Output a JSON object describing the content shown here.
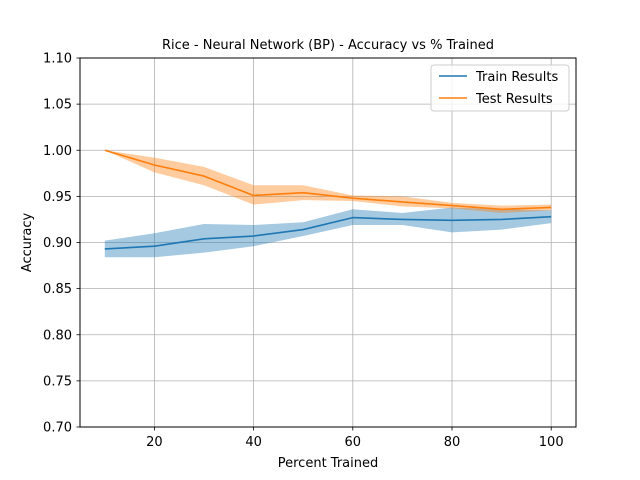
{
  "chart_data": {
    "type": "line",
    "title": "Rice - Neural Network (BP) - Accuracy vs % Trained",
    "xlabel": "Percent Trained",
    "ylabel": "Accuracy",
    "xlim": [
      5,
      105
    ],
    "ylim": [
      0.7,
      1.1
    ],
    "xticks": [
      "20",
      "40",
      "60",
      "80",
      "100"
    ],
    "yticks": [
      "0.70",
      "0.75",
      "0.80",
      "0.85",
      "0.90",
      "0.95",
      "1.00",
      "1.05",
      "1.10"
    ],
    "grid": true,
    "legend_position": "top-right",
    "x": [
      10,
      20,
      30,
      40,
      50,
      60,
      70,
      80,
      90,
      100
    ],
    "series": [
      {
        "name": "Train Results",
        "color": "#1f77b4",
        "band_color": "#1f77b4",
        "values": [
          0.893,
          0.896,
          0.904,
          0.907,
          0.914,
          0.927,
          0.925,
          0.924,
          0.925,
          0.928
        ],
        "lower": [
          0.884,
          0.884,
          0.889,
          0.896,
          0.907,
          0.919,
          0.919,
          0.911,
          0.914,
          0.921
        ],
        "upper": [
          0.902,
          0.91,
          0.92,
          0.919,
          0.922,
          0.936,
          0.932,
          0.938,
          0.936,
          0.935
        ]
      },
      {
        "name": "Test Results",
        "color": "#ff7f0e",
        "band_color": "#ff7f0e",
        "values": [
          1.0,
          0.984,
          0.972,
          0.951,
          0.954,
          0.948,
          0.944,
          0.94,
          0.936,
          0.938
        ],
        "lower": [
          1.0,
          0.976,
          0.962,
          0.941,
          0.946,
          0.945,
          0.939,
          0.937,
          0.932,
          0.935
        ],
        "upper": [
          1.0,
          0.992,
          0.982,
          0.962,
          0.962,
          0.951,
          0.95,
          0.943,
          0.94,
          0.941
        ]
      }
    ]
  }
}
